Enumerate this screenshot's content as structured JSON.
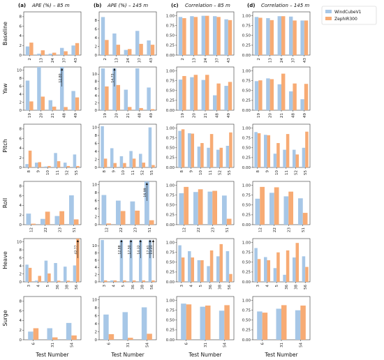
{
  "chart_data": {
    "type": "bar",
    "legend": {
      "placement": "top-right",
      "entries": [
        {
          "name": "WindCubeV1",
          "color": "#a7c7e7"
        },
        {
          "name": "ZephIR300",
          "color": "#f7ab74"
        }
      ]
    },
    "columns": [
      {
        "letter": "(a)",
        "title": "APE (%) – 85 m"
      },
      {
        "letter": "(b)",
        "title": "APE (%) – 145 m"
      },
      {
        "letter": "(c)",
        "title": "Correlation – 85 m"
      },
      {
        "letter": "(d)",
        "title": "Correlation – 145 m"
      }
    ],
    "xlabel": "Test Number",
    "panels": [
      {
        "row": "Baseline",
        "categories": [
          "2",
          "13",
          "24",
          "37",
          "43"
        ],
        "cols": [
          {
            "ylim": [
              0,
              9
            ],
            "yticks": [
              0,
              2,
              4,
              6,
              8
            ],
            "wc": [
              1.8,
              0.3,
              0.3,
              1.5,
              2.0
            ],
            "zr": [
              2.6,
              1.0,
              0.5,
              0.8,
              2.5
            ]
          },
          {
            "ylim": [
              0,
              10
            ],
            "yticks": [
              0,
              2,
              4,
              6,
              8
            ],
            "wc": [
              8.8,
              5.0,
              1.2,
              5.6,
              3.4
            ],
            "zr": [
              3.5,
              2.4,
              1.4,
              2.6,
              2.4
            ]
          },
          {
            "ylim": [
              0,
              1.1
            ],
            "yticks": [
              0.0,
              0.25,
              0.5,
              0.75,
              1.0
            ],
            "wc": [
              0.97,
              0.99,
              1.0,
              0.99,
              0.91
            ],
            "zr": [
              0.94,
              0.97,
              1.0,
              0.97,
              0.89
            ]
          },
          {
            "ylim": [
              0,
              1.1
            ],
            "yticks": [
              0.0,
              0.25,
              0.5,
              0.75,
              1.0
            ],
            "wc": [
              0.97,
              0.94,
              0.99,
              0.98,
              0.88
            ],
            "zr": [
              0.95,
              0.89,
              0.99,
              0.88,
              0.88
            ]
          }
        ]
      },
      {
        "row": "Yaw",
        "categories": [
          "19",
          "20",
          "21",
          "48",
          "49"
        ],
        "cols": [
          {
            "ylim": [
              0,
              10.8
            ],
            "yticks": [
              0,
              2,
              4,
              6,
              8,
              10
            ],
            "wc": [
              7.4,
              10.8,
              2.5,
              10.8,
              4.8
            ],
            "zr": [
              2.2,
              3.4,
              0.9,
              0.8,
              3.2
            ],
            "annotations": [
              {
                "i": 3,
                "s": "wc",
                "label": "12.80"
              }
            ]
          },
          {
            "ylim": [
              0,
              12
            ],
            "yticks": [
              0,
              2,
              4,
              6,
              8,
              10
            ],
            "wc": [
              11.6,
              11.6,
              5.7,
              11.6,
              6.3
            ],
            "zr": [
              6.6,
              7.0,
              0.9,
              0.6,
              0.3
            ],
            "annotations": [
              {
                "i": 1,
                "s": "wc",
                "label": "14.73"
              }
            ]
          },
          {
            "ylim": [
              0,
              1.1
            ],
            "yticks": [
              0.0,
              0.25,
              0.5,
              0.75,
              1.0
            ],
            "wc": [
              0.78,
              0.84,
              0.77,
              0.38,
              0.62
            ],
            "zr": [
              0.87,
              0.9,
              0.9,
              0.68,
              0.72
            ]
          },
          {
            "ylim": [
              0,
              1.1
            ],
            "yticks": [
              0.0,
              0.25,
              0.5,
              0.75,
              1.0
            ],
            "wc": [
              0.74,
              0.81,
              0.66,
              0.48,
              0.28
            ],
            "zr": [
              0.76,
              0.79,
              0.93,
              0.68,
              0.67
            ]
          }
        ]
      },
      {
        "row": "Pitch",
        "categories": [
          "8",
          "9",
          "10",
          "11",
          "52",
          "55"
        ],
        "cols": [
          {
            "ylim": [
              0,
              9
            ],
            "yticks": [
              0,
              2,
              4,
              6,
              8
            ],
            "wc": [
              0.7,
              1.0,
              0.2,
              3.0,
              1.0,
              2.7
            ],
            "zr": [
              3.5,
              1.1,
              0.3,
              1.3,
              0.3,
              0.3
            ]
          },
          {
            "ylim": [
              0,
              10.8
            ],
            "yticks": [
              0,
              2,
              4,
              6,
              8,
              10
            ],
            "wc": [
              10.3,
              4.8,
              2.8,
              4.1,
              3.4,
              10.0
            ],
            "zr": [
              2.2,
              1.1,
              1.1,
              2.2,
              1.2,
              0.6
            ]
          },
          {
            "ylim": [
              0,
              1.1
            ],
            "yticks": [
              0.0,
              0.25,
              0.5,
              0.75,
              1.0
            ],
            "wc": [
              0.93,
              0.87,
              0.53,
              0.5,
              0.45,
              0.55
            ],
            "zr": [
              0.97,
              0.86,
              0.62,
              0.85,
              0.5,
              0.89
            ]
          },
          {
            "ylim": [
              0,
              1.1
            ],
            "yticks": [
              0.0,
              0.25,
              0.5,
              0.75,
              1.0
            ],
            "wc": [
              0.9,
              0.83,
              0.35,
              0.45,
              0.45,
              0.5
            ],
            "zr": [
              0.87,
              0.82,
              0.62,
              0.85,
              0.33,
              0.91
            ]
          }
        ]
      },
      {
        "row": "Roll",
        "categories": [
          "12",
          "22",
          "23",
          "51"
        ],
        "cols": [
          {
            "ylim": [
              0,
              9
            ],
            "yticks": [
              0,
              2,
              4,
              6,
              8
            ],
            "wc": [
              2.3,
              1.2,
              1.8,
              6.1
            ],
            "zr": [
              0.2,
              2.7,
              2.8,
              1.1
            ]
          },
          {
            "ylim": [
              0,
              10.8
            ],
            "yticks": [
              0,
              2,
              4,
              6,
              8,
              10
            ],
            "wc": [
              7.4,
              6.0,
              5.8,
              10.8
            ],
            "zr": [
              0.3,
              3.4,
              3.5,
              1.1
            ],
            "annotations": [
              {
                "i": 3,
                "s": "wc",
                "label": "16.99"
              }
            ]
          },
          {
            "ylim": [
              0,
              1.1
            ],
            "yticks": [
              0.0,
              0.25,
              0.5,
              0.75,
              1.0
            ],
            "wc": [
              0.8,
              0.83,
              0.84,
              0.74
            ],
            "zr": [
              0.96,
              0.9,
              0.86,
              0.15
            ]
          },
          {
            "ylim": [
              0,
              1.1
            ],
            "yticks": [
              0.0,
              0.25,
              0.5,
              0.75,
              1.0
            ],
            "wc": [
              0.66,
              0.81,
              0.72,
              0.67
            ],
            "zr": [
              0.96,
              0.95,
              0.84,
              0.3
            ]
          }
        ]
      },
      {
        "row": "Heave",
        "categories": [
          "3",
          "4",
          "5",
          "36",
          "38",
          "56"
        ],
        "cols": [
          {
            "ylim": [
              0,
              10.8
            ],
            "yticks": [
              0,
              2,
              4,
              6,
              8,
              10
            ],
            "wc": [
              4.3,
              0.3,
              5.3,
              4.7,
              3.8,
              4.1
            ],
            "zr": [
              3.5,
              1.5,
              2.1,
              0.3,
              0.3,
              10.8
            ],
            "annotations": [
              {
                "i": 5,
                "s": "zr",
                "label": "42.77"
              }
            ]
          },
          {
            "ylim": [
              0,
              12
            ],
            "yticks": [
              0,
              2,
              4,
              6,
              8,
              10
            ],
            "wc": [
              11.6,
              0.4,
              11.6,
              11.6,
              11.6,
              11.6
            ],
            "zr": [
              0.4,
              0.4,
              0.4,
              0.4,
              0.4,
              0.4
            ],
            "annotations": [
              {
                "i": 2,
                "s": "wc",
                "label": "12.88"
              },
              {
                "i": 3,
                "s": "wc",
                "label": "17.50"
              },
              {
                "i": 4,
                "s": "wc",
                "label": "14.32"
              },
              {
                "i": 5,
                "s": "wc",
                "label": "17.61"
              },
              {
                "i": 5,
                "s": "zr",
                "label": "13.21"
              }
            ]
          },
          {
            "ylim": [
              0,
              1.1
            ],
            "yticks": [
              0.0,
              0.25,
              0.5,
              0.75,
              1.0
            ],
            "wc": [
              0.93,
              0.78,
              0.55,
              0.4,
              0.65,
              0.78
            ],
            "zr": [
              0.62,
              0.62,
              0.55,
              0.8,
              0.96,
              0.2
            ]
          },
          {
            "ylim": [
              0,
              1.1
            ],
            "yticks": [
              0.0,
              0.25,
              0.5,
              0.75,
              1.0
            ],
            "wc": [
              0.86,
              0.63,
              0.35,
              0.18,
              0.62,
              0.65
            ],
            "zr": [
              0.58,
              0.55,
              0.75,
              0.8,
              0.99,
              0.38
            ]
          }
        ]
      },
      {
        "row": "Surge",
        "categories": [
          "6",
          "31",
          "54"
        ],
        "cols": [
          {
            "ylim": [
              0,
              9
            ],
            "yticks": [
              0,
              2,
              4,
              6,
              8
            ],
            "wc": [
              1.7,
              2.4,
              3.5
            ],
            "zr": [
              2.4,
              0.5,
              0.9
            ]
          },
          {
            "ylim": [
              0,
              10.8
            ],
            "yticks": [
              0,
              2,
              4,
              6,
              8,
              10
            ],
            "wc": [
              6.3,
              6.9,
              8.1
            ],
            "zr": [
              1.4,
              0.5,
              1.5
            ]
          },
          {
            "ylim": [
              0,
              1.1
            ],
            "yticks": [
              0.0,
              0.25,
              0.5,
              0.75,
              1.0
            ],
            "wc": [
              0.92,
              0.84,
              0.74
            ],
            "zr": [
              0.9,
              0.87,
              0.88
            ]
          },
          {
            "ylim": [
              0,
              1.1
            ],
            "yticks": [
              0.0,
              0.25,
              0.5,
              0.75,
              1.0
            ],
            "wc": [
              0.72,
              0.79,
              0.75
            ],
            "zr": [
              0.69,
              0.88,
              0.87
            ]
          }
        ]
      }
    ]
  }
}
